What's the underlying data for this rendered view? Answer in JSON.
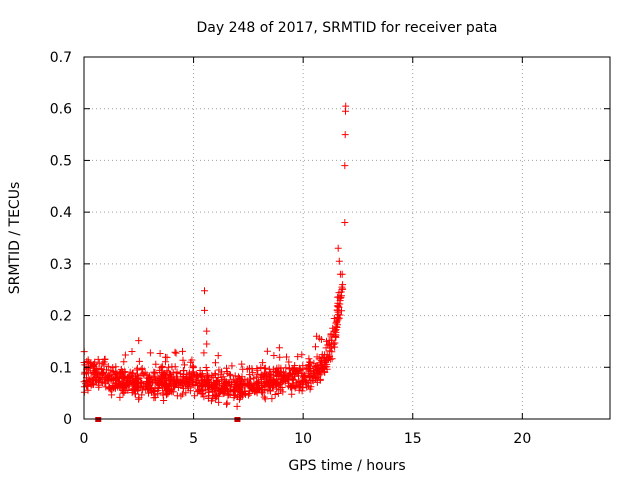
{
  "chart_data": {
    "type": "scatter",
    "title": "Day 248 of 2017, SRMTID for receiver pata",
    "xlabel": "GPS time / hours",
    "ylabel": "SRMTID / TECUs",
    "xlim": [
      0,
      24
    ],
    "ylim": [
      0,
      0.7
    ],
    "x_ticks": [
      0,
      5,
      10,
      15,
      20
    ],
    "x_tick_labels": [
      "0",
      "5",
      "10",
      "15",
      "20"
    ],
    "y_ticks": [
      0,
      0.1,
      0.2,
      0.3,
      0.4,
      0.5,
      0.6,
      0.7
    ],
    "y_tick_labels": [
      "0",
      "0.1",
      "0.2",
      "0.3",
      "0.4",
      "0.5",
      "0.6",
      "0.7"
    ],
    "grid": true,
    "marker": "+",
    "color": "#ff0000",
    "data_gaps_hours": [
      0.65,
      7.0
    ],
    "series": [
      {
        "name": "SRMTID",
        "description_profile": [
          {
            "x": 0.0,
            "y": 0.08
          },
          {
            "x": 0.5,
            "y": 0.09
          },
          {
            "x": 1.0,
            "y": 0.08
          },
          {
            "x": 2.0,
            "y": 0.07
          },
          {
            "x": 3.0,
            "y": 0.07
          },
          {
            "x": 4.0,
            "y": 0.07
          },
          {
            "x": 5.0,
            "y": 0.08
          },
          {
            "x": 6.0,
            "y": 0.06
          },
          {
            "x": 7.0,
            "y": 0.06
          },
          {
            "x": 8.0,
            "y": 0.07
          },
          {
            "x": 9.0,
            "y": 0.08
          },
          {
            "x": 10.0,
            "y": 0.08
          },
          {
            "x": 11.0,
            "y": 0.1
          },
          {
            "x": 11.5,
            "y": 0.18
          },
          {
            "x": 11.8,
            "y": 0.25
          }
        ],
        "outliers": [
          {
            "x": 5.5,
            "y": 0.248
          },
          {
            "x": 5.5,
            "y": 0.21
          },
          {
            "x": 5.6,
            "y": 0.17
          },
          {
            "x": 5.6,
            "y": 0.145
          },
          {
            "x": 11.6,
            "y": 0.33
          },
          {
            "x": 11.65,
            "y": 0.305
          },
          {
            "x": 11.7,
            "y": 0.28
          },
          {
            "x": 11.9,
            "y": 0.38
          },
          {
            "x": 11.9,
            "y": 0.49
          },
          {
            "x": 11.92,
            "y": 0.55
          },
          {
            "x": 11.93,
            "y": 0.595
          },
          {
            "x": 11.94,
            "y": 0.605
          }
        ]
      }
    ]
  }
}
